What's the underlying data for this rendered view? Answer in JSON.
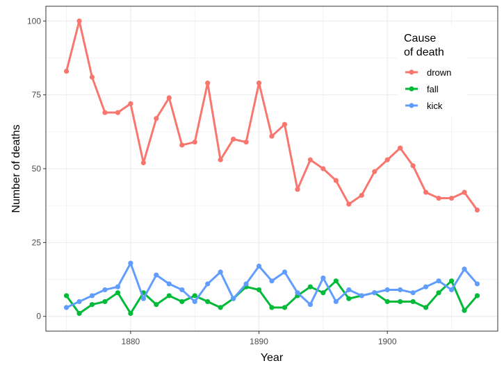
{
  "chart_data": {
    "type": "line",
    "xlabel": "Year",
    "ylabel": "Number of deaths",
    "xlim": [
      1873.4,
      1908.6
    ],
    "ylim": [
      -5,
      105
    ],
    "x_ticks": [
      1880,
      1890,
      1900
    ],
    "y_ticks": [
      0,
      25,
      50,
      75,
      100
    ],
    "grid": true,
    "legend": {
      "title": [
        "Cause",
        "of death"
      ],
      "position": "top-right"
    },
    "x": [
      1875,
      1876,
      1877,
      1878,
      1879,
      1880,
      1881,
      1882,
      1883,
      1884,
      1885,
      1886,
      1887,
      1888,
      1889,
      1890,
      1891,
      1892,
      1893,
      1894,
      1895,
      1896,
      1897,
      1898,
      1899,
      1900,
      1901,
      1902,
      1903,
      1904,
      1905,
      1906,
      1907
    ],
    "series": [
      {
        "name": "drown",
        "color": "#F8766D",
        "values": [
          83,
          100,
          81,
          69,
          69,
          72,
          52,
          67,
          74,
          58,
          59,
          79,
          53,
          60,
          59,
          79,
          61,
          65,
          43,
          53,
          50,
          46,
          38,
          41,
          49,
          53,
          57,
          51,
          42,
          40,
          40,
          42,
          36
        ]
      },
      {
        "name": "fall",
        "color": "#00BA38",
        "values": [
          7,
          1,
          4,
          5,
          8,
          1,
          8,
          4,
          7,
          5,
          7,
          5,
          3,
          6,
          10,
          9,
          3,
          3,
          7,
          10,
          8,
          12,
          6,
          7,
          8,
          5,
          5,
          5,
          3,
          8,
          12,
          2,
          7
        ]
      },
      {
        "name": "kick",
        "color": "#619CFF",
        "values": [
          3,
          5,
          7,
          9,
          10,
          18,
          6,
          14,
          11,
          9,
          5,
          11,
          15,
          6,
          11,
          17,
          12,
          15,
          8,
          4,
          13,
          5,
          9,
          7,
          8,
          9,
          9,
          8,
          10,
          12,
          9,
          16,
          11
        ]
      }
    ]
  },
  "colors": {
    "grid": "#ebebeb",
    "axis_border": "#333333",
    "tick_text": "#4d4d4d"
  }
}
